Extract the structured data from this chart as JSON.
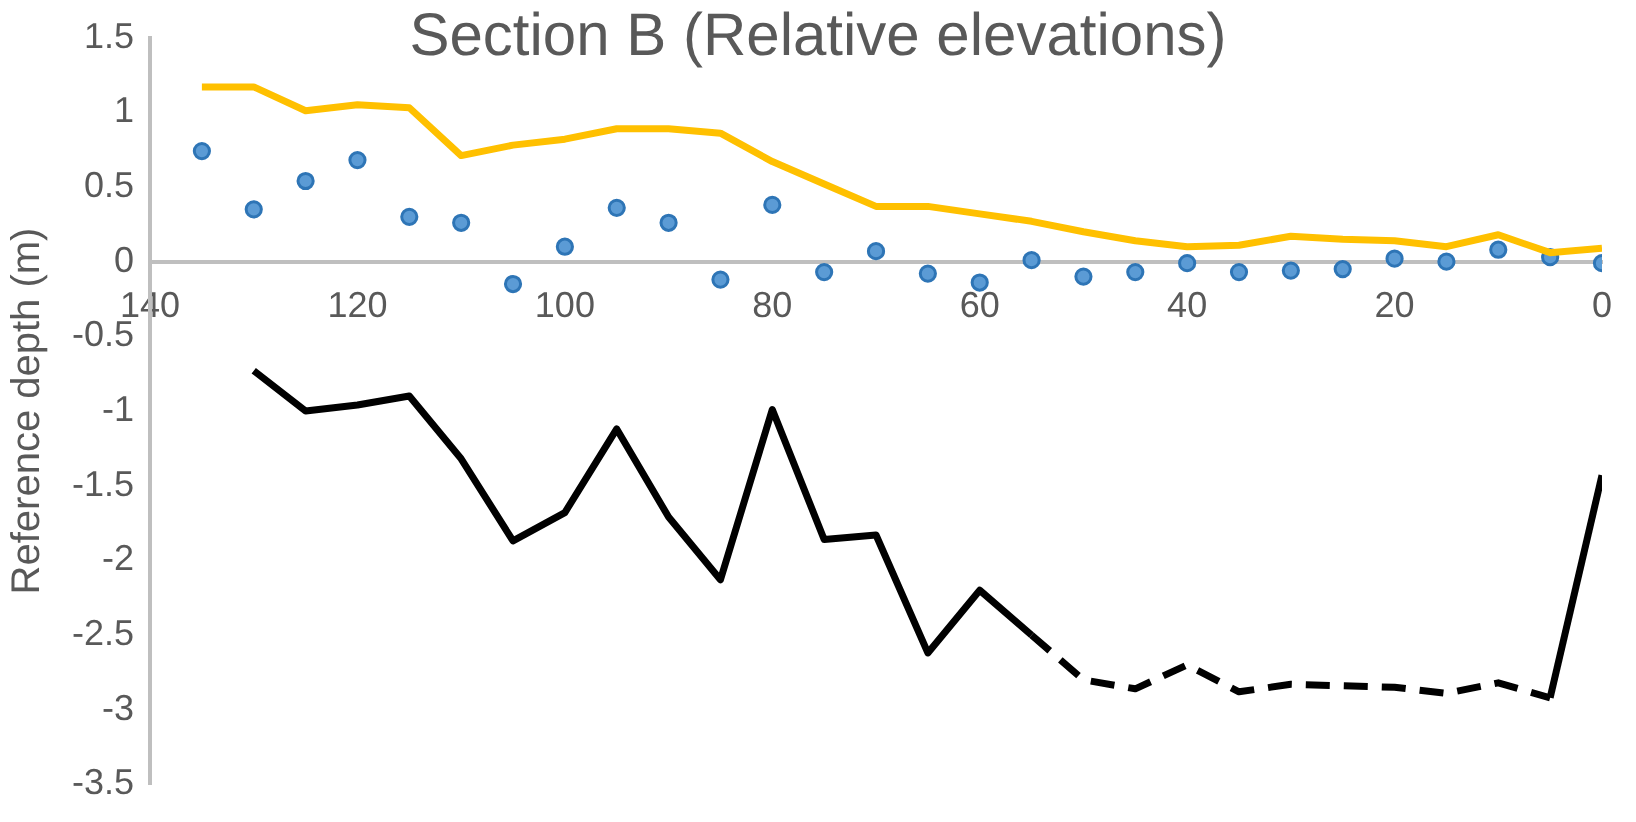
{
  "chart_data": {
    "type": "line",
    "title": "Section B (Relative elevations)",
    "ylabel": "Reference depth (m)",
    "xlim": [
      140,
      0
    ],
    "xticks": [
      140,
      120,
      100,
      80,
      60,
      40,
      20,
      0
    ],
    "ylim": [
      -3.5,
      1.5
    ],
    "yticks": [
      -3.5,
      -3,
      -2.5,
      -2,
      -1.5,
      -1,
      -0.5,
      0,
      0.5,
      1,
      1.5
    ],
    "grid": false,
    "series": [
      {
        "color": "#ffc000",
        "marker": "none",
        "line_style": "solid",
        "x": [
          135,
          130,
          125,
          120,
          115,
          110,
          105,
          100,
          95,
          90,
          85,
          80,
          75,
          70,
          65,
          60,
          55,
          50,
          45,
          40,
          35,
          30,
          25,
          20,
          15,
          10,
          5,
          0
        ],
        "values": [
          1.17,
          1.17,
          1.01,
          1.05,
          1.03,
          0.71,
          0.78,
          0.82,
          0.89,
          0.89,
          0.86,
          0.67,
          0.52,
          0.37,
          0.37,
          0.32,
          0.27,
          0.2,
          0.14,
          0.1,
          0.11,
          0.17,
          0.15,
          0.14,
          0.1,
          0.18,
          0.06,
          0.09
        ]
      },
      {
        "type": "scatter",
        "color": "#5b9bd5",
        "marker": "circle",
        "x": [
          135,
          130,
          125,
          120,
          115,
          110,
          105,
          100,
          95,
          90,
          85,
          80,
          75,
          70,
          65,
          60,
          55,
          50,
          45,
          40,
          35,
          30,
          25,
          20,
          15,
          10,
          5,
          0
        ],
        "values": [
          0.74,
          0.35,
          0.54,
          0.68,
          0.3,
          0.26,
          -0.15,
          0.1,
          0.36,
          0.26,
          -0.12,
          0.38,
          -0.07,
          0.07,
          -0.08,
          -0.14,
          0.01,
          -0.1,
          -0.07,
          -0.01,
          -0.07,
          -0.06,
          -0.05,
          0.02,
          0.0,
          0.08,
          0.03,
          -0.01
        ]
      },
      {
        "color": "#000000",
        "marker": "none",
        "line_style": "solid",
        "x": [
          130,
          125,
          120,
          115,
          110,
          105,
          100,
          95,
          90,
          85,
          80,
          75,
          70,
          65,
          60,
          55
        ],
        "values": [
          -0.73,
          -1.0,
          -0.96,
          -0.9,
          -1.32,
          -1.87,
          -1.68,
          -1.12,
          -1.71,
          -2.13,
          -0.99,
          -1.86,
          -1.83,
          -2.62,
          -2.2,
          -2.5
        ]
      },
      {
        "color": "#000000",
        "marker": "none",
        "line_style": "dashed",
        "x": [
          55,
          50,
          45,
          40,
          35,
          30,
          25,
          20,
          15,
          10,
          5
        ],
        "values": [
          -2.5,
          -2.8,
          -2.86,
          -2.7,
          -2.88,
          -2.83,
          -2.84,
          -2.85,
          -2.89,
          -2.82,
          -2.92
        ]
      },
      {
        "color": "#000000",
        "marker": "none",
        "line_style": "solid",
        "x": [
          5,
          0
        ],
        "values": [
          -2.92,
          -1.43
        ]
      }
    ]
  }
}
